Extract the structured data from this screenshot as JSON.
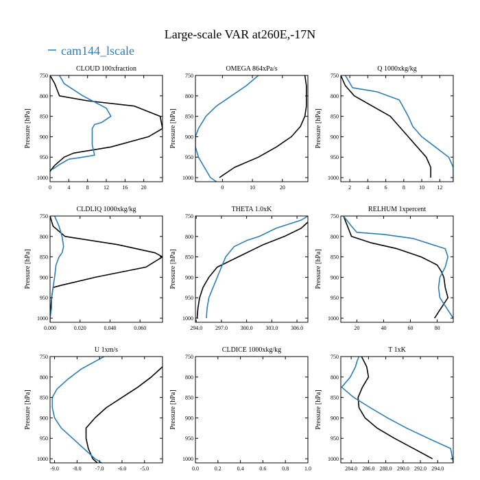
{
  "title": "Large-scale VAR at260E,-17N",
  "legend": {
    "label": "cam144_lscale",
    "placement": "top-left",
    "color": "#2a7db6"
  },
  "colors": {
    "blue": "#2a7db6",
    "black": "#000000"
  },
  "chart_data": [
    {
      "type": "line",
      "title": "CLOUD 100xfraction",
      "ylabel": "Pressure [hPa]",
      "ylim": [
        750,
        1010
      ],
      "xlim": [
        0,
        24
      ],
      "xticks": [
        0,
        4,
        8,
        12,
        16,
        20
      ],
      "xtick_labels": [
        "0",
        "4",
        "8",
        "12",
        "16",
        "20"
      ],
      "yticks": [
        750,
        800,
        850,
        900,
        950,
        1000
      ],
      "ytick_labels": [
        "750",
        "800",
        "850",
        "900",
        "950",
        "1000"
      ],
      "series": [
        {
          "name": "black",
          "color": "#000000",
          "x": [
            0,
            1,
            2,
            8,
            18,
            23.5,
            24,
            21,
            13,
            5,
            3,
            2,
            1,
            0.3,
            0
          ],
          "y": [
            750,
            770,
            800,
            812,
            825,
            850,
            880,
            900,
            925,
            940,
            950,
            960,
            970,
            980,
            985
          ]
        },
        {
          "name": "cam144_lscale",
          "color": "#2a7db6",
          "x": [
            2,
            3,
            7,
            12,
            13,
            11,
            9.5,
            9,
            9,
            9,
            9.5,
            7,
            4,
            2,
            0.5
          ],
          "y": [
            750,
            770,
            800,
            830,
            850,
            865,
            870,
            880,
            900,
            920,
            945,
            950,
            955,
            968,
            980
          ]
        }
      ]
    },
    {
      "type": "line",
      "title": "OMEGA 864xPa/s",
      "ylabel": "Pressure [hPa]",
      "ylim": [
        750,
        1010
      ],
      "xlim": [
        -9,
        28.5
      ],
      "xticks": [
        0,
        10,
        20
      ],
      "xtick_labels": [
        "0",
        "10",
        "20"
      ],
      "yticks": [
        750,
        800,
        850,
        900,
        950,
        1000
      ],
      "ytick_labels": [
        "750",
        "800",
        "850",
        "900",
        "950",
        "1000"
      ],
      "series": [
        {
          "name": "black",
          "color": "#000000",
          "x": [
            27.5,
            28,
            28,
            28,
            27.5,
            26,
            23,
            18,
            12,
            4,
            -1
          ],
          "y": [
            750,
            775,
            800,
            825,
            850,
            875,
            900,
            925,
            950,
            975,
            1000
          ]
        },
        {
          "name": "cam144_lscale",
          "color": "#2a7db6",
          "x": [
            12,
            8,
            3,
            -2,
            -5.5,
            -8,
            -9,
            -9,
            -8,
            -6,
            -4,
            -2
          ],
          "y": [
            750,
            775,
            800,
            825,
            850,
            880,
            900,
            925,
            950,
            975,
            1000,
            1010
          ]
        }
      ]
    },
    {
      "type": "line",
      "title": "Q 1000xkg/kg",
      "ylabel": "Pressure [hPa]",
      "ylim": [
        750,
        1010
      ],
      "xlim": [
        1,
        13.5
      ],
      "xticks": [
        2,
        4,
        6,
        8,
        10,
        12
      ],
      "xtick_labels": [
        "2",
        "4",
        "6",
        "8",
        "10",
        "12"
      ],
      "yticks": [
        750,
        800,
        850,
        900,
        950,
        1000
      ],
      "ytick_labels": [
        "750",
        "800",
        "850",
        "900",
        "950",
        "1000"
      ],
      "series": [
        {
          "name": "black",
          "color": "#000000",
          "x": [
            1,
            1.5,
            2.5,
            4.5,
            6.5,
            7.5,
            8.5,
            9.5,
            10.5,
            11,
            11
          ],
          "y": [
            750,
            775,
            800,
            825,
            850,
            875,
            900,
            925,
            950,
            975,
            1000
          ]
        },
        {
          "name": "cam144_lscale",
          "color": "#2a7db6",
          "x": [
            1.5,
            2.3,
            5,
            7.5,
            8.5,
            9,
            10,
            11.5,
            13,
            13.5,
            13.5
          ],
          "y": [
            750,
            780,
            790,
            810,
            850,
            875,
            900,
            925,
            950,
            975,
            1010
          ]
        }
      ]
    },
    {
      "type": "line",
      "title": "CLDLIQ 1000xkg/kg",
      "ylabel": "Pressure [hPa]",
      "ylim": [
        750,
        1010
      ],
      "xlim": [
        0,
        0.075
      ],
      "xticks": [
        0,
        0.02,
        0.04,
        0.06
      ],
      "xtick_labels": [
        "0.000",
        "0.020",
        "0.040",
        "0.060"
      ],
      "yticks": [
        750,
        800,
        850,
        900,
        950,
        1000
      ],
      "ytick_labels": [
        "750",
        "800",
        "850",
        "900",
        "950",
        "1000"
      ],
      "series": [
        {
          "name": "black",
          "color": "#000000",
          "x": [
            0,
            0.002,
            0.01,
            0.045,
            0.07,
            0.075,
            0.064,
            0.03,
            0.007,
            0.002,
            0.001,
            0.0005,
            0
          ],
          "y": [
            750,
            775,
            800,
            820,
            840,
            850,
            875,
            900,
            920,
            925,
            950,
            975,
            1000
          ]
        },
        {
          "name": "cam144_lscale",
          "color": "#2a7db6",
          "x": [
            0.003,
            0.006,
            0.008,
            0.009,
            0.008,
            0.006,
            0.004,
            0.003,
            0.002,
            0.001,
            0.001,
            0,
            0
          ],
          "y": [
            750,
            775,
            800,
            825,
            840,
            850,
            870,
            900,
            925,
            950,
            975,
            1000,
            1010
          ]
        }
      ]
    },
    {
      "type": "line",
      "title": "THETA 1.0xK",
      "ylabel": "Pressure [hPa]",
      "ylim": [
        750,
        1010
      ],
      "xlim": [
        293.9,
        307.3
      ],
      "xticks": [
        294,
        297,
        300,
        303,
        306
      ],
      "xtick_labels": [
        "294.0",
        "297.0",
        "300.0",
        "303.0",
        "306.0"
      ],
      "yticks": [
        750,
        800,
        850,
        900,
        950,
        1000
      ],
      "ytick_labels": [
        "750",
        "800",
        "850",
        "900",
        "950",
        "1000"
      ],
      "series": [
        {
          "name": "black",
          "color": "#000000",
          "x": [
            307.3,
            306.5,
            304.5,
            302,
            299.5,
            297.5,
            296.5,
            295.5,
            294.8,
            294.4,
            294.2,
            294.1
          ],
          "y": [
            765,
            780,
            800,
            820,
            845,
            865,
            875,
            900,
            925,
            950,
            975,
            1000
          ]
        },
        {
          "name": "cam144_lscale",
          "color": "#2a7db6",
          "x": [
            307.3,
            306.5,
            303.5,
            301.5,
            300,
            298.5,
            297.5,
            297,
            296.5,
            296,
            295.5,
            295.3,
            295.2
          ],
          "y": [
            750,
            760,
            780,
            800,
            810,
            825,
            850,
            875,
            900,
            925,
            950,
            975,
            1000
          ]
        }
      ]
    },
    {
      "type": "line",
      "title": "RELHUM 1xpercent",
      "ylabel": "Pressure [hPa]",
      "ylim": [
        750,
        1010
      ],
      "xlim": [
        8,
        92
      ],
      "xticks": [
        20,
        40,
        60,
        80
      ],
      "xtick_labels": [
        "20",
        "40",
        "60",
        "80"
      ],
      "yticks": [
        750,
        800,
        850,
        900,
        950,
        1000
      ],
      "ytick_labels": [
        "750",
        "800",
        "850",
        "900",
        "950",
        "1000"
      ],
      "series": [
        {
          "name": "black",
          "color": "#000000",
          "x": [
            10,
            13,
            16,
            30,
            50,
            68,
            80,
            83,
            85,
            86,
            88,
            83,
            78
          ],
          "y": [
            750,
            775,
            800,
            815,
            830,
            850,
            870,
            885,
            900,
            925,
            950,
            975,
            1000
          ]
        },
        {
          "name": "cam144_lscale",
          "color": "#2a7db6",
          "x": [
            10,
            16,
            20,
            40,
            62,
            86,
            88,
            86,
            82,
            81,
            82,
            87,
            92
          ],
          "y": [
            750,
            775,
            790,
            795,
            805,
            830,
            850,
            875,
            900,
            925,
            950,
            975,
            1000
          ]
        }
      ]
    },
    {
      "type": "line",
      "title": "U 1xm/s",
      "ylabel": "Pressure [hPa]",
      "ylim": [
        750,
        1010
      ],
      "xlim": [
        -9.2,
        -4.2
      ],
      "xticks": [
        -9,
        -8,
        -7,
        -6,
        -5
      ],
      "xtick_labels": [
        "-9.0",
        "-8.0",
        "-7.0",
        "-6.0",
        "-5.0"
      ],
      "yticks": [
        750,
        800,
        850,
        900,
        950,
        1000
      ],
      "ytick_labels": [
        "750",
        "800",
        "850",
        "900",
        "950",
        "1000"
      ],
      "series": [
        {
          "name": "black",
          "color": "#000000",
          "x": [
            -4.2,
            -4.7,
            -5.3,
            -6,
            -6.7,
            -7.2,
            -7.6,
            -7.6,
            -7.5,
            -7.3,
            -7.1
          ],
          "y": [
            775,
            800,
            825,
            850,
            875,
            900,
            925,
            950,
            975,
            1000,
            1010
          ]
        },
        {
          "name": "cam144_lscale",
          "color": "#2a7db6",
          "x": [
            -6.8,
            -7.3,
            -7.8,
            -8.4,
            -8.9,
            -9.1,
            -9.1,
            -9,
            -8.7,
            -8.2,
            -7.7,
            -7.2,
            -6.9
          ],
          "y": [
            750,
            765,
            780,
            805,
            830,
            850,
            875,
            900,
            925,
            950,
            975,
            1000,
            1010
          ]
        }
      ]
    },
    {
      "type": "line",
      "title": "CLDICE 1000xkg/kg",
      "ylabel": "Pressure [hPa]",
      "ylim": [
        750,
        1010
      ],
      "xlim": [
        0,
        1
      ],
      "xticks": [
        0,
        0.2,
        0.4,
        0.6,
        0.8,
        1.0
      ],
      "xtick_labels": [
        "0.0",
        "0.2",
        "0.4",
        "0.6",
        "0.8",
        "1.0"
      ],
      "yticks": [
        750,
        800,
        850,
        900,
        950,
        1000
      ],
      "ytick_labels": [
        "750",
        "800",
        "850",
        "900",
        "950",
        "1000"
      ],
      "series": []
    },
    {
      "type": "line",
      "title": "T 1xK",
      "ylabel": "Pressure [hPa]",
      "ylim": [
        750,
        1010
      ],
      "xlim": [
        282.8,
        295.8
      ],
      "xticks": [
        284,
        286,
        288,
        290,
        292,
        294
      ],
      "xtick_labels": [
        "284.0",
        "286.0",
        "288.0",
        "290.0",
        "292.0",
        "294.0"
      ],
      "yticks": [
        750,
        800,
        850,
        900,
        950,
        1000
      ],
      "ytick_labels": [
        "750",
        "800",
        "850",
        "900",
        "950",
        "1000"
      ],
      "series": [
        {
          "name": "black",
          "color": "#000000",
          "x": [
            285.2,
            285.8,
            286,
            285.3,
            284.8,
            284.9,
            285.6,
            287,
            289,
            291.2,
            293.4
          ],
          "y": [
            750,
            775,
            800,
            825,
            850,
            875,
            900,
            925,
            950,
            975,
            1000
          ]
        },
        {
          "name": "cam144_lscale",
          "color": "#2a7db6",
          "x": [
            284.9,
            284.7,
            284.5,
            283.9,
            282.9,
            284.3,
            286.2,
            288.2,
            290.4,
            292.9,
            295.5,
            295.8
          ],
          "y": [
            750,
            760,
            775,
            800,
            825,
            850,
            875,
            900,
            925,
            950,
            975,
            1010
          ]
        }
      ]
    }
  ]
}
